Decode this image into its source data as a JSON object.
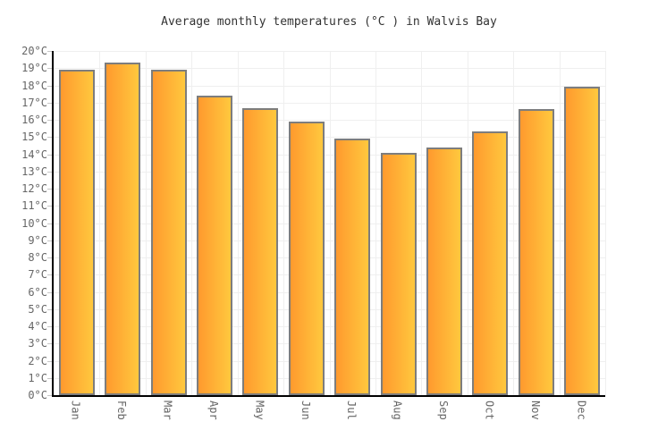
{
  "title": "Average monthly temperatures (°C ) in Walvis Bay",
  "chart_data": {
    "type": "bar",
    "title": "Average monthly temperatures (°C ) in Walvis Bay",
    "categories": [
      "Jan",
      "Feb",
      "Mar",
      "Apr",
      "May",
      "Jun",
      "Jul",
      "Aug",
      "Sep",
      "Oct",
      "Nov",
      "Dec"
    ],
    "values": [
      18.9,
      19.3,
      18.9,
      17.4,
      16.7,
      15.9,
      14.9,
      14.1,
      14.4,
      15.3,
      16.6,
      17.9
    ],
    "xlabel": "",
    "ylabel": "",
    "ylim": [
      0,
      20
    ],
    "ytick_step": 1,
    "ytick_suffix": "°C",
    "grid": true,
    "legend": "none"
  },
  "colors": {
    "bar_gradient_left": "#FF9A2E",
    "bar_gradient_right": "#FFC83E",
    "bar_border": "#7D7D7D",
    "gridline": "#EFEFEF",
    "axis": "#000000",
    "tick": "#C6C6C6",
    "axis_label_text": "#666666",
    "title_text": "#333333",
    "background": "#FFFFFF"
  }
}
